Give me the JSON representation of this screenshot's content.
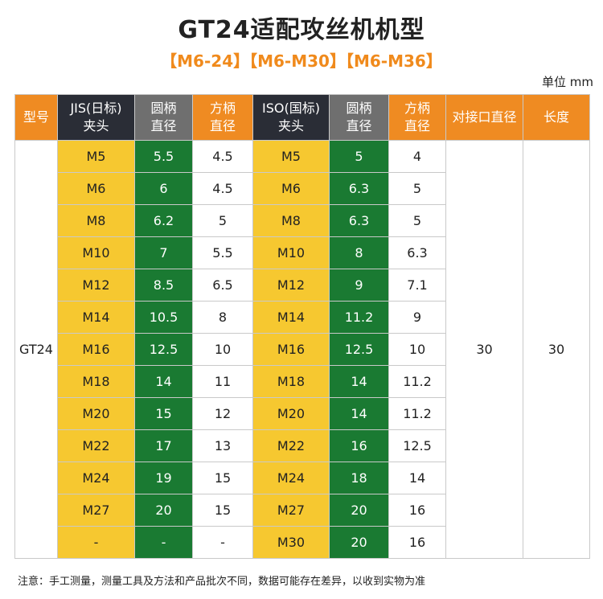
{
  "title": "GT24适配攻丝机机型",
  "subtitle": "【M6-24】【M6-M30】【M6-M36】",
  "unit": "单位 mm",
  "headers": {
    "model": "型号",
    "jis_l1": "JIS(日标)",
    "jis_l2": "夹头",
    "jis_round_l1": "圆柄",
    "jis_round_l2": "直径",
    "jis_square_l1": "方柄",
    "jis_square_l2": "直径",
    "iso_l1": "ISO(国标)",
    "iso_l2": "夹头",
    "iso_round_l1": "圆柄",
    "iso_round_l2": "直径",
    "iso_square_l1": "方柄",
    "iso_square_l2": "直径",
    "interface": "对接口直径",
    "length": "长度"
  },
  "model": "GT24",
  "interface_diameter": "30",
  "length": "30",
  "rows": [
    [
      "M5",
      "5.5",
      "4.5",
      "M5",
      "5",
      "4"
    ],
    [
      "M6",
      "6",
      "4.5",
      "M6",
      "6.3",
      "5"
    ],
    [
      "M8",
      "6.2",
      "5",
      "M8",
      "6.3",
      "5"
    ],
    [
      "M10",
      "7",
      "5.5",
      "M10",
      "8",
      "6.3"
    ],
    [
      "M12",
      "8.5",
      "6.5",
      "M12",
      "9",
      "7.1"
    ],
    [
      "M14",
      "10.5",
      "8",
      "M14",
      "11.2",
      "9"
    ],
    [
      "M16",
      "12.5",
      "10",
      "M16",
      "12.5",
      "10"
    ],
    [
      "M18",
      "14",
      "11",
      "M18",
      "14",
      "11.2"
    ],
    [
      "M20",
      "15",
      "12",
      "M20",
      "14",
      "11.2"
    ],
    [
      "M22",
      "17",
      "13",
      "M22",
      "16",
      "12.5"
    ],
    [
      "M24",
      "19",
      "15",
      "M24",
      "18",
      "14"
    ],
    [
      "M27",
      "20",
      "15",
      "M27",
      "20",
      "16"
    ],
    [
      "-",
      "-",
      "-",
      "M30",
      "20",
      "16"
    ]
  ],
  "note": "注意：手工测量，测量工具及方法和产品批次不同，数据可能存在差异，以收到实物为准"
}
